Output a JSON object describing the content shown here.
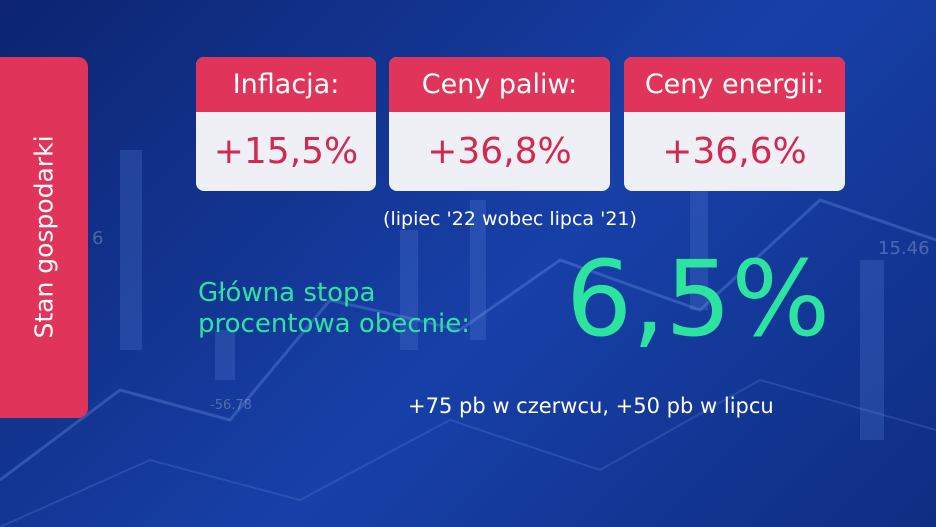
{
  "side_label": "Stan gospodarki",
  "cards": [
    {
      "label": "Inflacja:",
      "value": "+15,5%"
    },
    {
      "label": "Ceny paliw:",
      "value": "+36,8%"
    },
    {
      "label": "Ceny energii:",
      "value": "+36,6%"
    }
  ],
  "note": "(lipiec '22 wobec lipca '21)",
  "rate": {
    "label_lines": [
      "Główna stopa",
      "procentowa obecnie:"
    ],
    "value": "6,5%"
  },
  "footnote": "+75 pb w czerwcu, +50 pb w lipcu",
  "background_labels": [
    "15.46",
    "-56.78",
    "6"
  ]
}
